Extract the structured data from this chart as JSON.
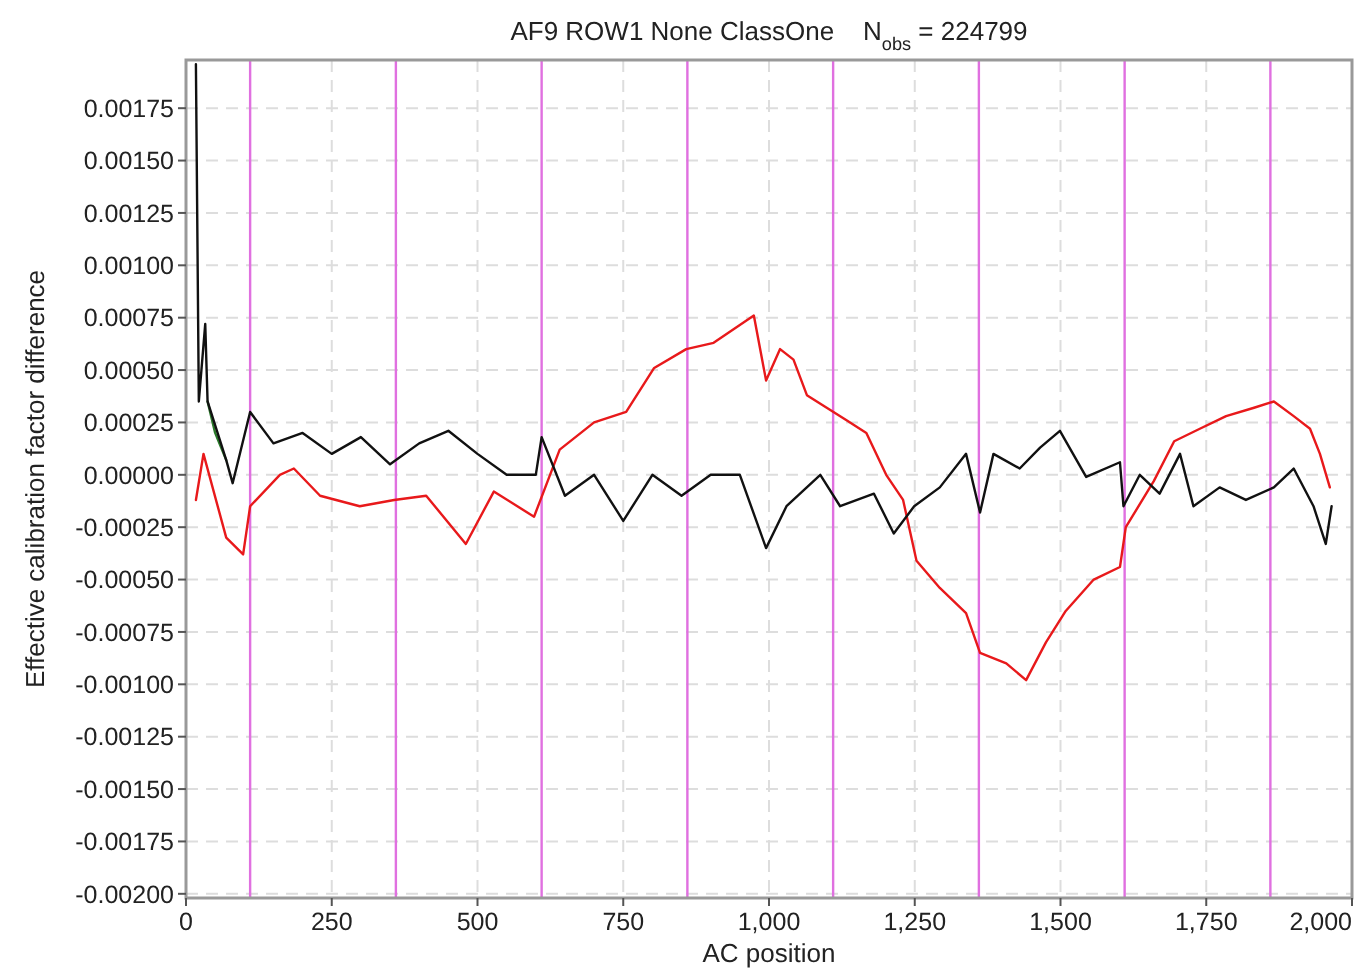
{
  "chart_data": {
    "type": "line",
    "title": "AF9 ROW1 None ClassOne    N$_{obs}$ = 224799",
    "xlabel": "AC position",
    "ylabel": "Effective calibration factor difference",
    "xlim": [
      0,
      2000
    ],
    "ylim": [
      -0.00202,
      0.00198
    ],
    "xticks": [
      0,
      250,
      500,
      750,
      {
        "value": 1000,
        "label": "1,000"
      },
      {
        "value": 1250,
        "label": "1,250"
      },
      {
        "value": 1500,
        "label": "1,500"
      },
      {
        "value": 1750,
        "label": "1,750"
      },
      {
        "value": 2000,
        "label": "2,000"
      }
    ],
    "yticks": [
      {
        "value": -0.002,
        "label": "-0.00200"
      },
      {
        "value": -0.00175,
        "label": "-0.00175"
      },
      {
        "value": -0.0015,
        "label": "-0.00150"
      },
      {
        "value": -0.00125,
        "label": "-0.00125"
      },
      {
        "value": -0.001,
        "label": "-0.00100"
      },
      {
        "value": -0.00075,
        "label": "-0.00075"
      },
      {
        "value": -0.0005,
        "label": "-0.00050"
      },
      {
        "value": -0.00025,
        "label": "-0.00025"
      },
      {
        "value": 0,
        "label": "0.00000"
      },
      {
        "value": 0.00025,
        "label": "0.00025"
      },
      {
        "value": 0.0005,
        "label": "0.00050"
      },
      {
        "value": 0.00075,
        "label": "0.00075"
      },
      {
        "value": 0.001,
        "label": "0.00100"
      },
      {
        "value": 0.00125,
        "label": "0.00125"
      },
      {
        "value": 0.0015,
        "label": "0.00150"
      },
      {
        "value": 0.00175,
        "label": "0.00175"
      }
    ],
    "grid": true,
    "line_style": "solid",
    "ref_lines": [
      {
        "axis": "x",
        "value": 110,
        "color": "#e070e0"
      },
      {
        "axis": "x",
        "value": 360,
        "color": "#e070e0"
      },
      {
        "axis": "x",
        "value": 610,
        "color": "#e070e0"
      },
      {
        "axis": "x",
        "value": 860,
        "color": "#e070e0"
      },
      {
        "axis": "x",
        "value": 1110,
        "color": "#e070e0"
      },
      {
        "axis": "x",
        "value": 1360,
        "color": "#e070e0"
      },
      {
        "axis": "x",
        "value": 1610,
        "color": "#e070e0"
      },
      {
        "axis": "x",
        "value": 1860,
        "color": "#e070e0"
      }
    ],
    "series": [
      {
        "color": "#e8191b",
        "x": [
          17,
          30,
          69,
          98,
          110,
          161,
          185,
          230,
          298,
          357,
          412,
          480,
          528,
          597,
          641,
          700,
          755,
          803,
          858,
          905,
          974,
          995,
          1019,
          1042,
          1065,
          1099,
          1133,
          1167,
          1201,
          1230,
          1253,
          1293,
          1338,
          1362,
          1407,
          1441,
          1475,
          1509,
          1557,
          1602,
          1612,
          1660,
          1695,
          1739,
          1784,
          1832,
          1866,
          1900,
          1928,
          1945,
          1962
        ],
        "values": [
          -0.00012,
          0.0001,
          -0.0003,
          -0.00038,
          -0.00015,
          0,
          3e-05,
          -0.0001,
          -0.00015,
          -0.00012,
          -0.0001,
          -0.00033,
          -8e-05,
          -0.0002,
          0.00012,
          0.00025,
          0.0003,
          0.00051,
          0.0006,
          0.00063,
          0.00076,
          0.00045,
          0.0006,
          0.00055,
          0.00038,
          0.00032,
          0.00026,
          0.0002,
          0,
          -0.00012,
          -0.00041,
          -0.00054,
          -0.00066,
          -0.00085,
          -0.0009,
          -0.00098,
          -0.0008,
          -0.00065,
          -0.0005,
          -0.00044,
          -0.00025,
          -3e-05,
          0.00016,
          0.00022,
          0.00028,
          0.00032,
          0.00035,
          0.00028,
          0.00022,
          0.0001,
          -6e-05
        ]
      },
      {
        "color": "#2a7a2a",
        "x": [
          37,
          50,
          69
        ],
        "values": [
          0.00035,
          0.0002,
          7e-05
        ]
      },
      {
        "color": "#111111",
        "x": [
          17,
          22,
          33,
          37,
          69,
          80,
          110,
          150,
          200,
          250,
          300,
          350,
          400,
          450,
          500,
          550,
          600,
          610,
          650,
          700,
          750,
          800,
          850,
          900,
          950,
          995,
          1030,
          1088,
          1122,
          1180,
          1214,
          1249,
          1293,
          1338,
          1362,
          1385,
          1430,
          1465,
          1499,
          1544,
          1602,
          1608,
          1636,
          1670,
          1705,
          1728,
          1773,
          1818,
          1866,
          1900,
          1934,
          1955,
          1965
        ],
        "values": [
          0.00196,
          0.00035,
          0.00072,
          0.00035,
          7e-05,
          -4e-05,
          0.0003,
          0.00015,
          0.0002,
          0.0001,
          0.00018,
          5e-05,
          0.00015,
          0.00021,
          0.0001,
          0,
          0,
          0.00018,
          -0.0001,
          0,
          -0.00022,
          0,
          -0.0001,
          0,
          0,
          -0.00035,
          -0.00015,
          0,
          -0.00015,
          -9e-05,
          -0.00028,
          -0.00015,
          -6e-05,
          0.0001,
          -0.00018,
          0.0001,
          3e-05,
          0.00013,
          0.00021,
          -1e-05,
          6e-05,
          -0.00015,
          0,
          -9e-05,
          0.0001,
          -0.00015,
          -6e-05,
          -0.00012,
          -6e-05,
          3e-05,
          -0.00015,
          -0.00033,
          -0.00015
        ]
      }
    ]
  }
}
